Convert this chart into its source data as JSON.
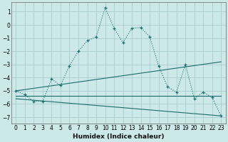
{
  "xlabel": "Humidex (Indice chaleur)",
  "bg_color": "#cce8e8",
  "grid_color": "#aacccc",
  "line_color": "#1a6b6b",
  "xlim": [
    -0.5,
    23.5
  ],
  "ylim": [
    -7.5,
    1.7
  ],
  "yticks": [
    1,
    0,
    -1,
    -2,
    -3,
    -4,
    -5,
    -6,
    -7
  ],
  "xticks": [
    0,
    1,
    2,
    3,
    4,
    5,
    6,
    7,
    8,
    9,
    10,
    11,
    12,
    13,
    14,
    15,
    16,
    17,
    18,
    19,
    20,
    21,
    22,
    23
  ],
  "line1_x": [
    0,
    1,
    2,
    3,
    4,
    5,
    6,
    7,
    8,
    9,
    10,
    11,
    12,
    13,
    14,
    15,
    16,
    17,
    18,
    19,
    20,
    21,
    22,
    23
  ],
  "line1_y": [
    -5.0,
    -5.3,
    -5.8,
    -5.8,
    -4.1,
    -4.6,
    -3.1,
    -2.0,
    -1.2,
    -0.9,
    1.3,
    -0.25,
    -1.35,
    -0.25,
    -0.2,
    -0.9,
    -3.1,
    -4.7,
    -5.1,
    -3.0,
    -5.6,
    -5.1,
    -5.5,
    -6.9
  ],
  "line2_x": [
    0,
    23
  ],
  "line2_y": [
    -5.0,
    -2.8
  ],
  "line3_x": [
    0,
    23
  ],
  "line3_y": [
    -5.4,
    -5.4
  ],
  "line4_x": [
    0,
    23
  ],
  "line4_y": [
    -5.6,
    -6.9
  ]
}
